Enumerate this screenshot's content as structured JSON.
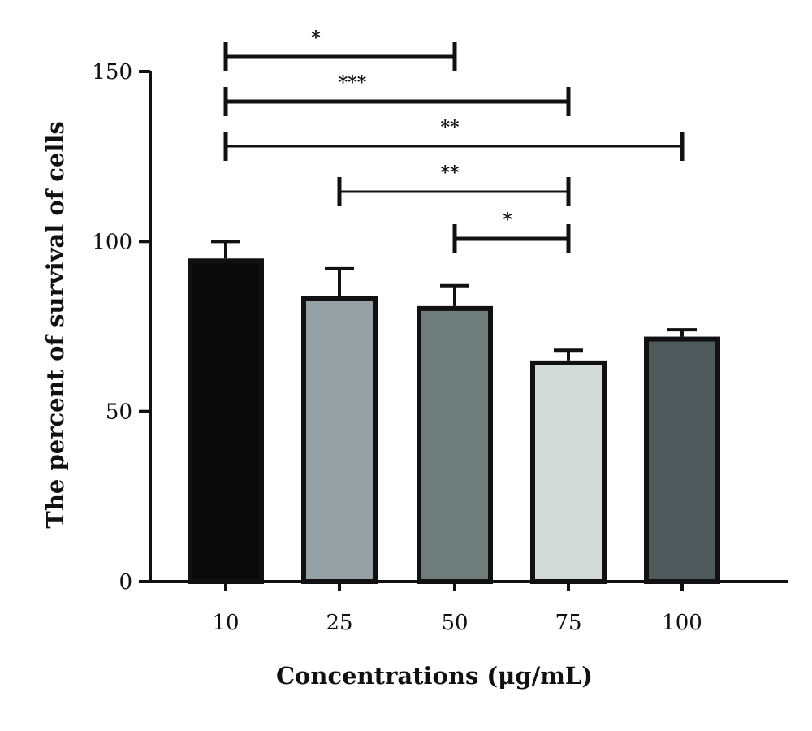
{
  "chart_data": {
    "type": "bar",
    "title": "",
    "xlabel": "Concentrations (μg/mL)",
    "ylabel": "The percent of survival of cells",
    "categories": [
      "10",
      "25",
      "50",
      "75",
      "100"
    ],
    "values": [
      95,
      84,
      81,
      65,
      72
    ],
    "error": [
      5,
      8,
      6,
      3,
      2
    ],
    "colors": [
      "#0a0a0a",
      "#95a1a4",
      "#6e7c7a",
      "#d2dbd7",
      "#4d595b"
    ],
    "ylim": [
      0,
      150
    ],
    "yticks": [
      "0",
      "50",
      "100",
      "150"
    ],
    "grid": false,
    "significance": [
      {
        "from": "10",
        "to": "50",
        "label": "*"
      },
      {
        "from": "10",
        "to": "75",
        "label": "***"
      },
      {
        "from": "10",
        "to": "100",
        "label": "**"
      },
      {
        "from": "25",
        "to": "75",
        "label": "**"
      },
      {
        "from": "50",
        "to": "75",
        "label": "*"
      }
    ]
  }
}
